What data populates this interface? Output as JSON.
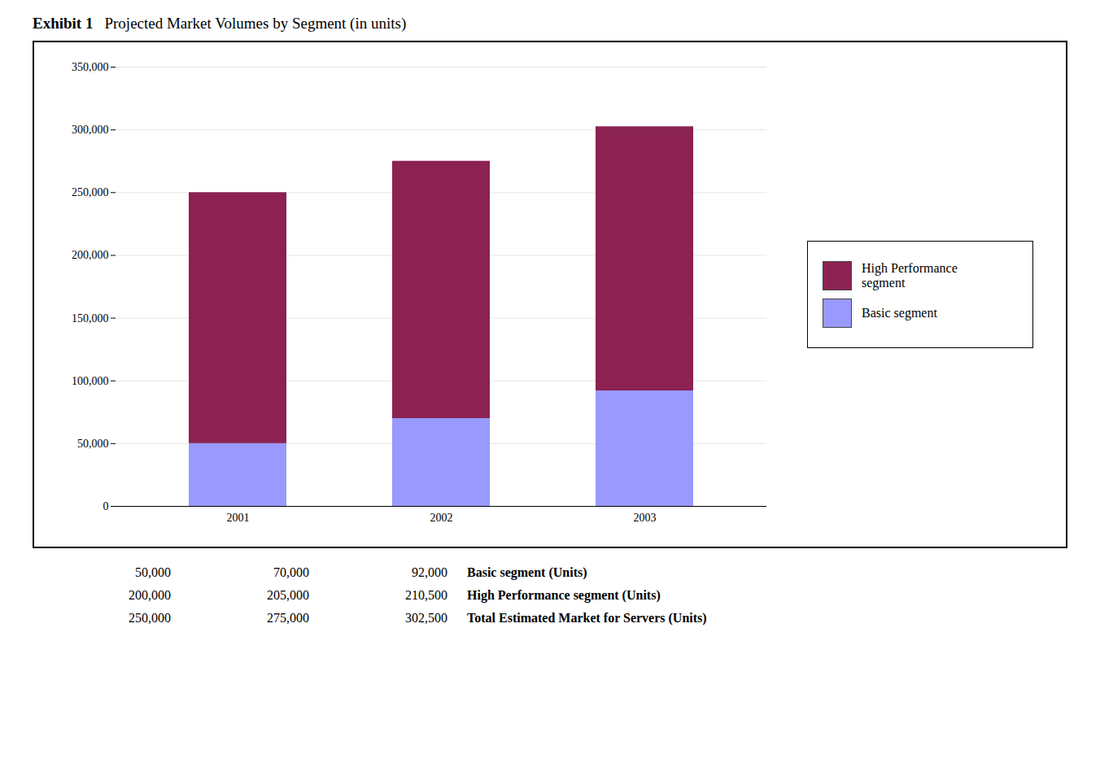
{
  "chart_data": {
    "type": "bar",
    "title": "Exhibit 1",
    "subtitle": "Projected Market Volumes by Segment (in units)",
    "categories": [
      "2001",
      "2002",
      "2003"
    ],
    "series": [
      {
        "name": "Basic segment",
        "color": "#9999ff",
        "values": [
          50000,
          70000,
          92000
        ]
      },
      {
        "name": "High Performance segment",
        "color": "#8b2252",
        "values": [
          200000,
          205000,
          210500
        ]
      }
    ],
    "stacked": true,
    "ylim": [
      0,
      350000
    ],
    "yticks": [
      0,
      {
        "value": 50000,
        "label": "50,000"
      },
      {
        "value": 100000,
        "label": "100,000"
      },
      {
        "value": 150000,
        "label": "150,000"
      },
      {
        "value": 200000,
        "label": "200,000"
      },
      {
        "value": 250000,
        "label": "250,000"
      },
      {
        "value": 300000,
        "label": "300,000"
      },
      {
        "value": 350000,
        "label": "350,000"
      }
    ],
    "grid": true,
    "legend": "right",
    "table": [
      {
        "label": "Basic segment (Units)",
        "cells": [
          "50,000",
          "70,000",
          "92,000"
        ]
      },
      {
        "label": "High Performance segment (Units)",
        "cells": [
          "200,000",
          "205,000",
          "210,500"
        ]
      },
      {
        "label": "Total Estimated Market for Servers (Units)",
        "cells": [
          "250,000",
          "275,000",
          "302,500"
        ]
      }
    ]
  }
}
